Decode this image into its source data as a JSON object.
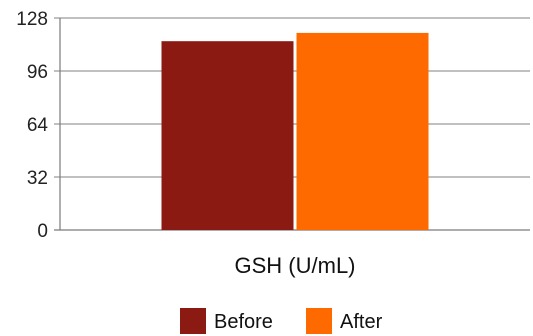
{
  "chart_data": {
    "type": "bar",
    "categories": [
      "GSH (U/mL)"
    ],
    "series": [
      {
        "name": "Before",
        "values": [
          114
        ],
        "color": "#8B1A12"
      },
      {
        "name": "After",
        "values": [
          119
        ],
        "color": "#FF6A00"
      }
    ],
    "title": "",
    "xlabel": "",
    "ylabel": "",
    "ylim": [
      0,
      128
    ],
    "yticks": [
      0,
      32,
      64,
      96,
      128
    ],
    "grid": true,
    "legend": "bottom-center",
    "colors": {
      "grid": "#9a9a9a",
      "axis": "#7a7a7a"
    }
  }
}
